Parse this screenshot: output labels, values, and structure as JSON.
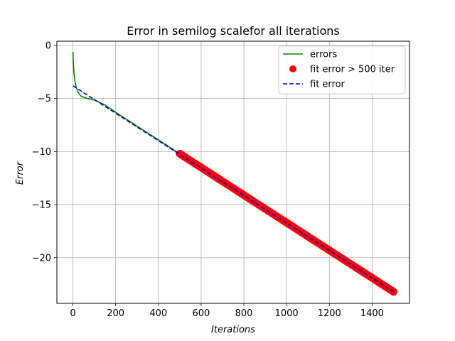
{
  "chart_data": {
    "type": "line",
    "title": "Error in semilog scalefor all iterations",
    "xlabel": "Iterations",
    "ylabel": "Error",
    "xlim": [
      -75,
      1575
    ],
    "ylim": [
      -24.3,
      0.4
    ],
    "xticks": [
      0,
      200,
      400,
      600,
      800,
      1000,
      1200,
      1400
    ],
    "yticks": [
      0,
      -5,
      -10,
      -15,
      -20
    ],
    "ytick_labels": [
      "0",
      "−5",
      "−10",
      "−15",
      "−20"
    ],
    "grid": true,
    "legend_position": "top-right",
    "series": [
      {
        "name": "errors",
        "kind": "line",
        "color": "#008000",
        "x": [
          0,
          2,
          5,
          10,
          15,
          20,
          30,
          40,
          60,
          80,
          100,
          150,
          200,
          300,
          400,
          500,
          600,
          700,
          800,
          900,
          1000,
          1100,
          1200,
          1300,
          1400,
          1500
        ],
        "y": [
          -0.6,
          -1.6,
          -2.6,
          -3.4,
          -3.9,
          -4.2,
          -4.6,
          -4.8,
          -4.95,
          -5.05,
          -5.15,
          -5.6,
          -6.3,
          -7.6,
          -8.9,
          -10.2,
          -11.5,
          -12.8,
          -14.1,
          -15.4,
          -16.7,
          -18.0,
          -19.3,
          -20.6,
          -21.9,
          -23.2
        ]
      },
      {
        "name": "fit error > 500 iter",
        "kind": "markers",
        "color": "#ff0000",
        "x_range": [
          500,
          1500
        ],
        "x_step": 10,
        "y_at_start": -10.2,
        "y_at_end": -23.2
      },
      {
        "name": "fit error",
        "kind": "dashed",
        "color": "#0000cc",
        "x": [
          0,
          1500
        ],
        "y": [
          -3.8,
          -23.2
        ]
      }
    ]
  }
}
